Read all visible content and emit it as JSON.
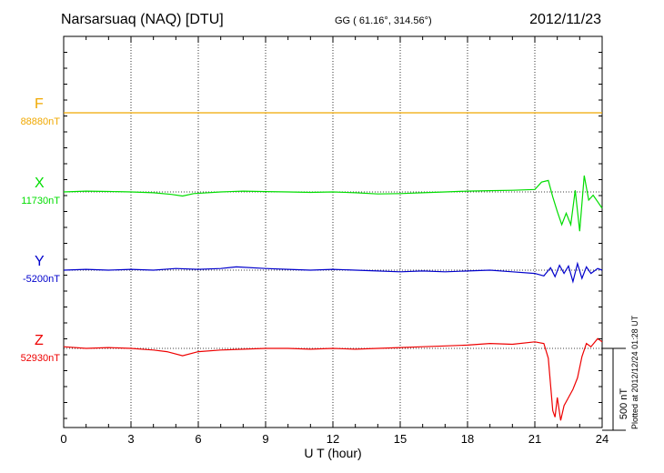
{
  "header": {
    "station": "Narsarsuaq (NAQ)  [DTU]",
    "coords": "GG ( 61.16°, 314.56°)",
    "date": "2012/11/23"
  },
  "components": [
    {
      "name": "F",
      "base": "88880nT",
      "color": "#f0a800"
    },
    {
      "name": "X",
      "base": "11730nT",
      "color": "#00dd00"
    },
    {
      "name": "Y",
      "base": "-5200nT",
      "color": "#0000cc"
    },
    {
      "name": "Z",
      "base": "52930nT",
      "color": "#ee0000"
    }
  ],
  "scale_label": "500 nT",
  "plotted_note": "Plotted at 2012/12/24 01:28 UT",
  "chart_data": {
    "type": "line",
    "xlabel": "U T (hour)",
    "xlim": [
      0,
      24
    ],
    "xticks": [
      "0",
      "3",
      "6",
      "9",
      "12",
      "15",
      "18",
      "21",
      "24"
    ],
    "y_unit": "nT",
    "scale_bar_nT": 500,
    "grid": true,
    "series": [
      {
        "name": "F",
        "baseline_nT": 88880,
        "x": [
          0,
          6,
          12,
          18,
          24
        ],
        "y": [
          0,
          0,
          0,
          0,
          0
        ]
      },
      {
        "name": "X",
        "baseline_nT": 11730,
        "x": [
          0,
          1,
          2,
          3,
          4,
          4.8,
          5.3,
          5.8,
          7,
          8,
          9,
          10,
          11,
          12,
          13,
          14,
          15,
          16,
          17,
          18,
          19,
          20,
          21,
          21.3,
          21.6,
          21.8,
          22,
          22.2,
          22.4,
          22.6,
          22.8,
          23,
          23.2,
          23.4,
          23.6,
          23.8,
          24
        ],
        "y": [
          0,
          5,
          3,
          0,
          -5,
          -15,
          -25,
          -10,
          0,
          5,
          2,
          0,
          -3,
          0,
          -5,
          -12,
          -10,
          -5,
          0,
          5,
          8,
          10,
          15,
          60,
          70,
          -30,
          -120,
          -200,
          -130,
          -200,
          10,
          -240,
          100,
          -50,
          -20,
          -60,
          -100
        ]
      },
      {
        "name": "Y",
        "baseline_nT": -5200,
        "x": [
          0,
          1,
          2,
          3,
          4,
          5,
          6,
          7,
          7.7,
          9,
          10,
          11,
          12,
          13,
          14,
          15,
          16,
          17,
          18,
          19,
          20,
          21,
          21.4,
          21.7,
          21.9,
          22.1,
          22.3,
          22.5,
          22.7,
          22.9,
          23.1,
          23.3,
          23.5,
          23.8,
          24
        ],
        "y": [
          0,
          5,
          0,
          5,
          0,
          10,
          5,
          10,
          20,
          10,
          5,
          0,
          5,
          0,
          -5,
          -10,
          -5,
          -10,
          -5,
          0,
          -10,
          -20,
          -35,
          15,
          -40,
          30,
          -20,
          25,
          -70,
          40,
          -50,
          20,
          -20,
          10,
          0
        ]
      },
      {
        "name": "Z",
        "baseline_nT": 52930,
        "x": [
          0,
          1,
          2,
          3,
          4,
          4.6,
          5.3,
          6,
          7,
          8,
          9,
          10,
          11,
          12,
          13,
          14,
          15,
          16,
          17,
          18,
          19,
          20,
          21,
          21.4,
          21.6,
          21.8,
          21.9,
          22.0,
          22.15,
          22.3,
          22.5,
          22.7,
          22.9,
          23.1,
          23.3,
          23.5,
          23.8,
          24
        ],
        "y": [
          10,
          0,
          5,
          0,
          -10,
          -20,
          -45,
          -20,
          -10,
          -5,
          0,
          0,
          -5,
          0,
          -5,
          0,
          5,
          10,
          15,
          20,
          30,
          25,
          40,
          30,
          -60,
          -380,
          -420,
          -300,
          -440,
          -350,
          -300,
          -250,
          -180,
          -50,
          30,
          10,
          60,
          40
        ]
      }
    ]
  }
}
